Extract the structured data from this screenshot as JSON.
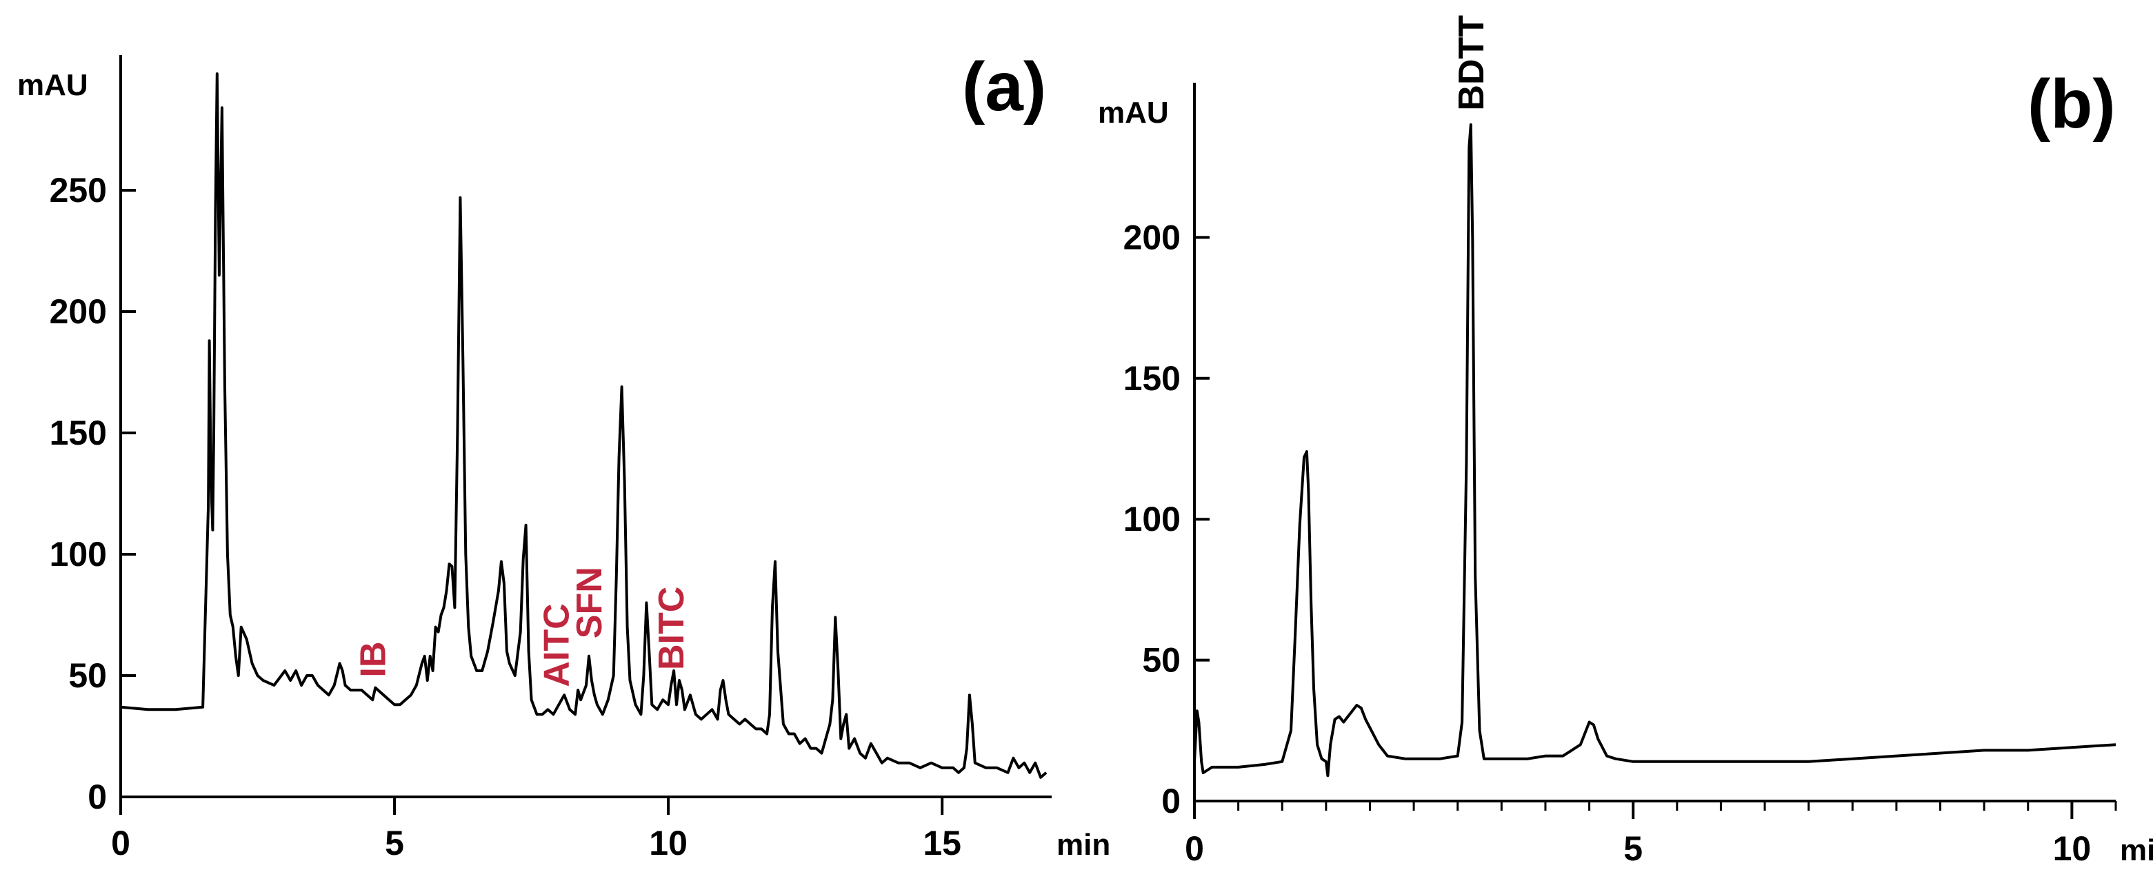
{
  "chart_data": [
    {
      "type": "line",
      "panel_label": "(a)",
      "ylabel": "mAU",
      "x_unit": "min",
      "xlim": [
        0,
        17
      ],
      "ylim": [
        0,
        300
      ],
      "x_ticks": [
        0,
        5,
        10,
        15
      ],
      "y_ticks": [
        0,
        50,
        100,
        150,
        200,
        250
      ],
      "grid": false,
      "legend": "none",
      "line_color": "#000000",
      "annotation_color": "#c0263d",
      "annotations": [
        {
          "text": "IB",
          "x": 4.6,
          "y": 47
        },
        {
          "text": "AITC",
          "x": 7.95,
          "y": 43
        },
        {
          "text": "SFN",
          "x": 8.55,
          "y": 63
        },
        {
          "text": "BITC",
          "x": 10.05,
          "y": 50
        }
      ],
      "series": [
        {
          "x": [
            0,
            0.5,
            1.0,
            1.5,
            1.6,
            1.62,
            1.65,
            1.68,
            1.7,
            1.73,
            1.76,
            1.8,
            1.85,
            1.9,
            1.95,
            2.0,
            2.05,
            2.1,
            2.15,
            2.2,
            2.3,
            2.4,
            2.5,
            2.6,
            2.8,
            3.0,
            3.1,
            3.2,
            3.3,
            3.4,
            3.5,
            3.6,
            3.7,
            3.8,
            3.9,
            4.0,
            4.05,
            4.1,
            4.2,
            4.3,
            4.4,
            4.5,
            4.6,
            4.65,
            4.7,
            4.8,
            4.9,
            5.0,
            5.1,
            5.2,
            5.3,
            5.4,
            5.5,
            5.55,
            5.6,
            5.65,
            5.7,
            5.75,
            5.8,
            5.85,
            5.9,
            5.95,
            6.0,
            6.05,
            6.1,
            6.15,
            6.2,
            6.25,
            6.3,
            6.35,
            6.4,
            6.5,
            6.6,
            6.7,
            6.8,
            6.9,
            6.95,
            7.0,
            7.05,
            7.1,
            7.2,
            7.3,
            7.35,
            7.4,
            7.45,
            7.5,
            7.6,
            7.7,
            7.8,
            7.9,
            8.0,
            8.1,
            8.2,
            8.3,
            8.35,
            8.4,
            8.5,
            8.55,
            8.6,
            8.65,
            8.7,
            8.8,
            8.9,
            9.0,
            9.05,
            9.1,
            9.15,
            9.2,
            9.25,
            9.3,
            9.4,
            9.5,
            9.55,
            9.6,
            9.65,
            9.7,
            9.8,
            9.9,
            10.0,
            10.05,
            10.1,
            10.15,
            10.2,
            10.25,
            10.3,
            10.4,
            10.5,
            10.6,
            10.7,
            10.8,
            10.9,
            10.95,
            11.0,
            11.05,
            11.1,
            11.2,
            11.3,
            11.4,
            11.5,
            11.6,
            11.7,
            11.8,
            11.85,
            11.9,
            11.95,
            12.0,
            12.1,
            12.2,
            12.3,
            12.4,
            12.5,
            12.6,
            12.7,
            12.8,
            12.9,
            12.95,
            13.0,
            13.05,
            13.1,
            13.15,
            13.2,
            13.25,
            13.3,
            13.4,
            13.5,
            13.6,
            13.7,
            13.8,
            13.9,
            14.0,
            14.2,
            14.4,
            14.6,
            14.8,
            15.0,
            15.2,
            15.3,
            15.4,
            15.45,
            15.5,
            15.55,
            15.6,
            15.8,
            16.0,
            16.2,
            16.3,
            16.4,
            16.5,
            16.6,
            16.7,
            16.8,
            16.9
          ],
          "y": [
            37,
            36,
            36,
            37,
            120,
            188,
            130,
            110,
            150,
            240,
            298,
            215,
            284,
            170,
            100,
            75,
            70,
            58,
            50,
            70,
            65,
            55,
            50,
            48,
            46,
            52,
            48,
            52,
            46,
            50,
            50,
            46,
            44,
            42,
            46,
            55,
            52,
            46,
            44,
            44,
            44,
            42,
            40,
            45,
            44,
            42,
            40,
            38,
            38,
            40,
            42,
            46,
            55,
            58,
            48,
            58,
            52,
            70,
            68,
            75,
            78,
            85,
            96,
            95,
            78,
            150,
            247,
            180,
            100,
            70,
            58,
            52,
            52,
            60,
            72,
            85,
            97,
            88,
            60,
            55,
            50,
            68,
            98,
            112,
            60,
            40,
            34,
            34,
            36,
            34,
            38,
            42,
            36,
            34,
            44,
            40,
            46,
            58,
            48,
            42,
            38,
            34,
            40,
            50,
            90,
            140,
            169,
            130,
            70,
            48,
            38,
            34,
            50,
            80,
            60,
            38,
            36,
            40,
            38,
            46,
            52,
            38,
            48,
            44,
            36,
            42,
            34,
            32,
            34,
            36,
            32,
            44,
            48,
            40,
            34,
            32,
            30,
            32,
            30,
            28,
            28,
            26,
            34,
            78,
            97,
            60,
            30,
            26,
            26,
            22,
            24,
            20,
            20,
            18,
            26,
            30,
            40,
            74,
            52,
            24,
            30,
            34,
            20,
            24,
            18,
            16,
            22,
            18,
            14,
            16,
            14,
            14,
            12,
            14,
            12,
            12,
            10,
            12,
            20,
            42,
            30,
            14,
            12,
            12,
            10,
            16,
            12,
            14,
            10,
            14,
            8,
            10
          ]
        }
      ]
    },
    {
      "type": "line",
      "panel_label": "(b)",
      "ylabel": "mAU",
      "x_unit": "min",
      "xlim": [
        0,
        10.5
      ],
      "ylim": [
        0,
        250
      ],
      "x_ticks": [
        0,
        5,
        10
      ],
      "x_minor_tick_step": 0.5,
      "y_ticks": [
        0,
        50,
        100,
        150,
        200
      ],
      "grid": false,
      "legend": "none",
      "line_color": "#000000",
      "annotation_color": "#000000",
      "annotations": [
        {
          "text": "BDTT",
          "x": 3.15,
          "y": 243
        }
      ],
      "series": [
        {
          "x": [
            0,
            0.03,
            0.05,
            0.08,
            0.1,
            0.15,
            0.2,
            0.3,
            0.5,
            0.8,
            1.0,
            1.1,
            1.15,
            1.2,
            1.25,
            1.28,
            1.3,
            1.33,
            1.36,
            1.4,
            1.45,
            1.5,
            1.52,
            1.55,
            1.6,
            1.65,
            1.7,
            1.8,
            1.85,
            1.9,
            1.95,
            2.0,
            2.1,
            2.2,
            2.4,
            2.6,
            2.8,
            3.0,
            3.05,
            3.1,
            3.13,
            3.15,
            3.17,
            3.2,
            3.25,
            3.3,
            3.4,
            3.6,
            3.8,
            4.0,
            4.2,
            4.3,
            4.4,
            4.45,
            4.5,
            4.55,
            4.6,
            4.7,
            4.8,
            5.0,
            5.5,
            6.0,
            6.5,
            7.0,
            7.5,
            8.0,
            8.5,
            9.0,
            9.5,
            10.0,
            10.5
          ],
          "y": [
            14,
            32,
            28,
            14,
            10,
            11,
            12,
            12,
            12,
            13,
            14,
            25,
            60,
            98,
            122,
            124,
            110,
            70,
            40,
            20,
            15,
            14,
            9,
            20,
            29,
            30,
            28,
            32,
            34,
            33,
            29,
            26,
            20,
            16,
            15,
            15,
            15,
            16,
            28,
            120,
            232,
            240,
            200,
            80,
            25,
            15,
            15,
            15,
            15,
            16,
            16,
            18,
            20,
            24,
            28,
            27,
            22,
            16,
            15,
            14,
            14,
            14,
            14,
            14,
            15,
            16,
            17,
            18,
            18,
            19,
            20
          ]
        }
      ]
    }
  ]
}
